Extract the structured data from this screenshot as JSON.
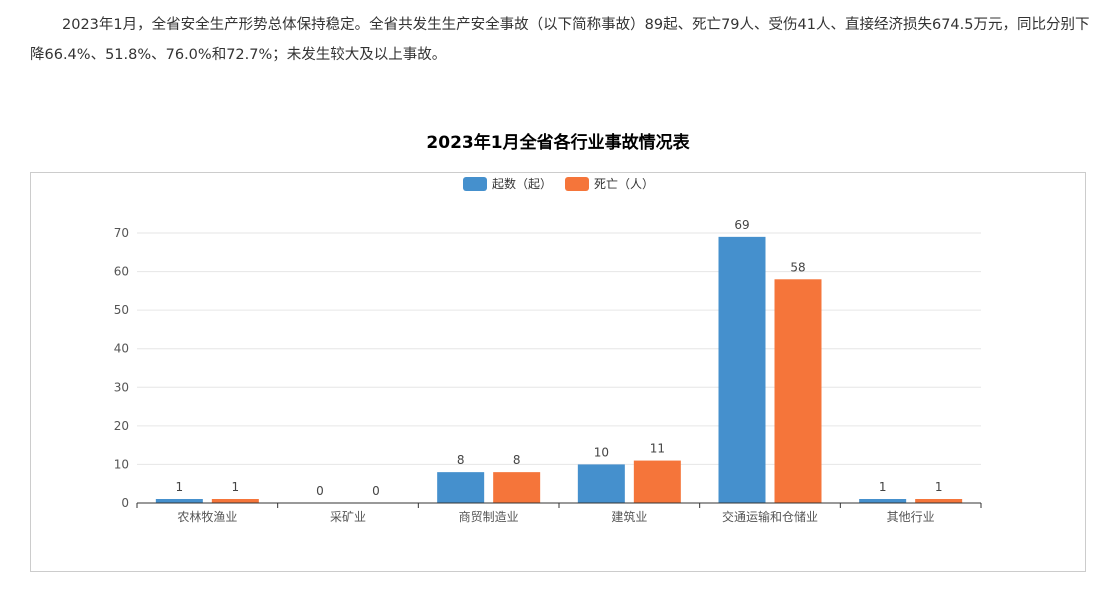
{
  "article": {
    "paragraph": "2023年1月，全省安全生产形势总体保持稳定。全省共发生生产安全事故（以下简称事故）89起、死亡79人、受伤41人、直接经济损失674.5万元，同比分别下降66.4%、51.8%、76.0%和72.7%；未发生较大及以上事故。"
  },
  "chart_data": {
    "type": "bar",
    "title": "2023年1月全省各行业事故情况表",
    "categories": [
      "农林牧渔业",
      "采矿业",
      "商贸制造业",
      "建筑业",
      "交通运输和仓储业",
      "其他行业"
    ],
    "series": [
      {
        "name": "起数（起）",
        "values": [
          1,
          0,
          8,
          10,
          69,
          1
        ],
        "color": "#4590cd"
      },
      {
        "name": "死亡（人）",
        "values": [
          1,
          0,
          8,
          11,
          58,
          1
        ],
        "color": "#f5753a"
      }
    ],
    "yticks": [
      0,
      10,
      20,
      30,
      40,
      50,
      60,
      70
    ],
    "ylim": [
      0,
      70
    ],
    "legend": "top-center",
    "grid": true
  }
}
